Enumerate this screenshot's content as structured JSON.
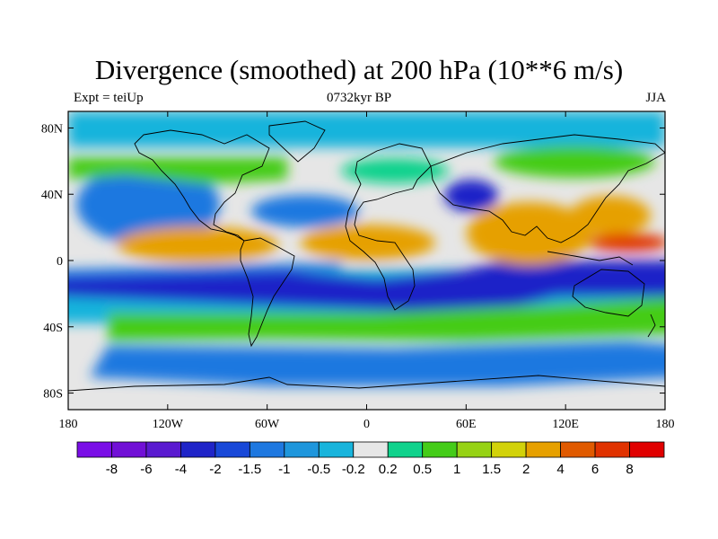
{
  "title": "Divergence (smoothed) at 200 hPa (10**6 m/s)",
  "subtitle_left": "Expt = teiUp",
  "subtitle_center": "0732kyr BP",
  "subtitle_right": "JJA",
  "lat_ticks": [
    {
      "label": "80N",
      "lat": 80
    },
    {
      "label": "40N",
      "lat": 40
    },
    {
      "label": "0",
      "lat": 0
    },
    {
      "label": "40S",
      "lat": -40
    },
    {
      "label": "80S",
      "lat": -80
    }
  ],
  "lon_ticks": [
    {
      "label": "180",
      "lon": -180
    },
    {
      "label": "120W",
      "lon": -120
    },
    {
      "label": "60W",
      "lon": -60
    },
    {
      "label": "0",
      "lon": 0
    },
    {
      "label": "60E",
      "lon": 60
    },
    {
      "label": "120E",
      "lon": 120
    },
    {
      "label": "180",
      "lon": 180
    }
  ],
  "colorbar": {
    "colors": [
      "#7a0ee6",
      "#7110d6",
      "#5a1ad0",
      "#1f24c8",
      "#1848d8",
      "#1e78e0",
      "#1e96dc",
      "#18b4dc",
      "#e6e6e6",
      "#10d28c",
      "#44cc18",
      "#96d214",
      "#d2d20a",
      "#e6a000",
      "#e05a00",
      "#e03200",
      "#e00000"
    ],
    "labels": [
      "-8",
      "-6",
      "-4",
      "-2",
      "-1.5",
      "-1",
      "-0.5",
      "-0.2",
      "0.2",
      "0.5",
      "1",
      "1.5",
      "2",
      "4",
      "6",
      "8"
    ]
  },
  "palette": {
    "neg_strong": "#1f24c8",
    "neg_mid": "#1e78e0",
    "neg_weak": "#18b4dc",
    "neutral": "#e6e6e6",
    "pos_weak": "#10d28c",
    "pos_mid": "#44cc18",
    "pos_orange": "#e6a000",
    "pos_strong": "#e03200",
    "coast": "#000000"
  }
}
